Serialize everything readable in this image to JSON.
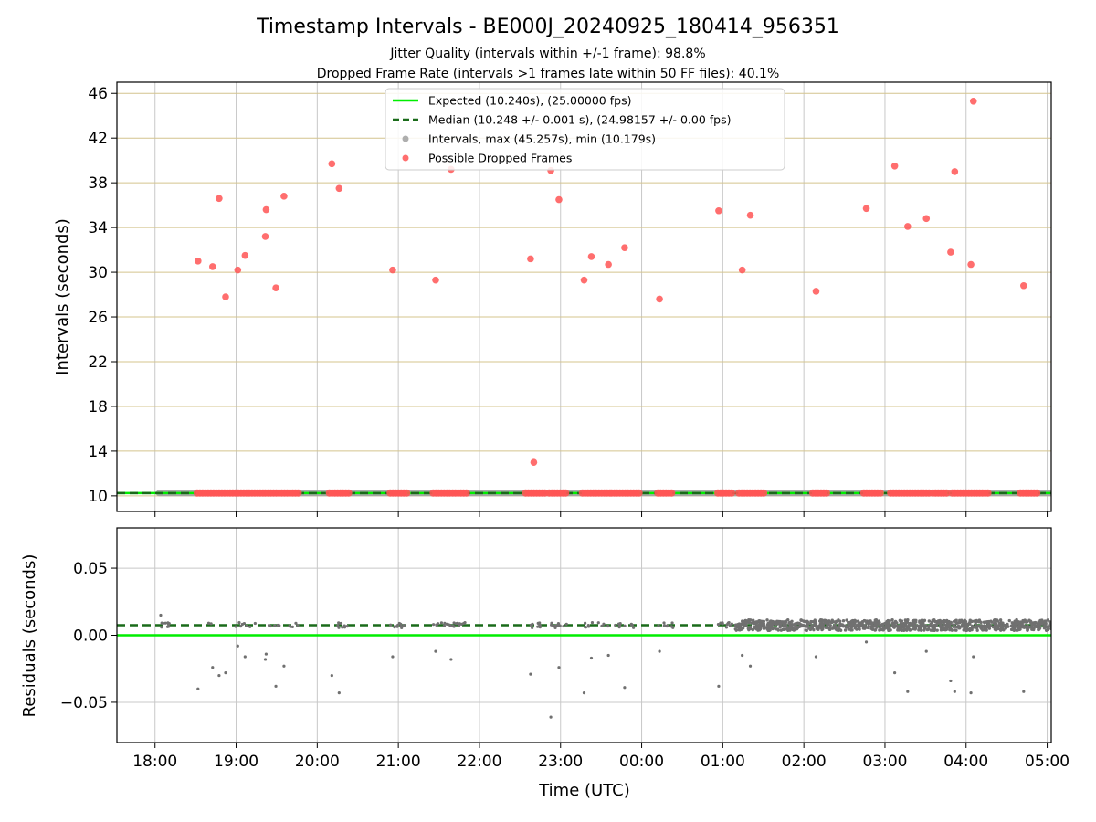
{
  "chart_data": [
    {
      "id": "intervals",
      "type": "scatter",
      "title": "Timestamp Intervals - BE000J_20240925_180414_956351",
      "subtitle_lines": [
        "Jitter Quality (intervals within +/-1 frame): 98.8%",
        "Dropped Frame Rate (intervals >1 frames late within 50 FF files): 40.1%"
      ],
      "xlabel": "",
      "ylabel": "Intervals (seconds)",
      "x_unit": "hours since 18:00 UTC",
      "xlim": [
        -0.47,
        11.05
      ],
      "ylim": [
        8.6,
        47.0
      ],
      "yticks": [
        10,
        14,
        18,
        22,
        26,
        30,
        34,
        38,
        42,
        46
      ],
      "grid": {
        "vertical": true,
        "horizontal": true,
        "horizontal_color": "#d4c48e",
        "vertical_color": "#c8c8c8"
      },
      "legend_position": "top-center",
      "lines": [
        {
          "name": "Expected (10.240s), (25.00000 fps)",
          "y": 10.24,
          "color": "#00ee00",
          "style": "solid"
        },
        {
          "name": "Median (10.248 +/- 0.001 s), (24.98157 +/- 0.00 fps)",
          "y": 10.248,
          "color": "#1a6b1a",
          "style": "dashed"
        }
      ],
      "series": [
        {
          "name": "Intervals, max (45.257s), min (10.179s)",
          "color": "#a0a0a0",
          "style": "band",
          "x_range": [
            0.05,
            11.05
          ],
          "y": 10.25
        },
        {
          "name": "Possible Dropped Frames",
          "color": "#ff5555",
          "points": [
            [
              0.53,
              31.0
            ],
            [
              0.71,
              30.5
            ],
            [
              0.79,
              36.6
            ],
            [
              0.87,
              27.8
            ],
            [
              1.02,
              30.2
            ],
            [
              1.11,
              31.5
            ],
            [
              1.36,
              33.2
            ],
            [
              1.37,
              35.6
            ],
            [
              1.49,
              28.6
            ],
            [
              1.59,
              36.8
            ],
            [
              2.18,
              39.7
            ],
            [
              2.27,
              37.5
            ],
            [
              2.93,
              30.2
            ],
            [
              3.46,
              29.3
            ],
            [
              3.65,
              39.2
            ],
            [
              4.63,
              31.2
            ],
            [
              4.67,
              13.0
            ],
            [
              4.88,
              39.1
            ],
            [
              4.98,
              36.5
            ],
            [
              5.29,
              29.3
            ],
            [
              5.38,
              31.4
            ],
            [
              5.59,
              30.7
            ],
            [
              5.79,
              32.2
            ],
            [
              6.22,
              27.6
            ],
            [
              6.95,
              35.5
            ],
            [
              7.24,
              30.2
            ],
            [
              7.34,
              35.1
            ],
            [
              8.15,
              28.3
            ],
            [
              8.77,
              35.7
            ],
            [
              9.12,
              39.5
            ],
            [
              9.28,
              34.1
            ],
            [
              9.51,
              34.8
            ],
            [
              9.81,
              31.8
            ],
            [
              9.86,
              39.0
            ],
            [
              10.06,
              30.7
            ],
            [
              10.09,
              45.3
            ],
            [
              10.71,
              28.8
            ]
          ],
          "baseline_clusters": [
            [
              0.52,
              1.34
            ],
            [
              1.36,
              1.77
            ],
            [
              2.15,
              2.42
            ],
            [
              2.9,
              3.11
            ],
            [
              3.43,
              3.64
            ],
            [
              3.67,
              3.86
            ],
            [
              4.57,
              4.83
            ],
            [
              4.86,
              5.08
            ],
            [
              5.27,
              5.61
            ],
            [
              5.63,
              5.98
            ],
            [
              6.2,
              6.39
            ],
            [
              6.94,
              7.13
            ],
            [
              7.2,
              7.52
            ],
            [
              8.11,
              8.3
            ],
            [
              8.74,
              8.96
            ],
            [
              9.07,
              9.57
            ],
            [
              9.59,
              9.79
            ],
            [
              9.83,
              10.07
            ],
            [
              10.1,
              10.29
            ],
            [
              10.67,
              10.9
            ]
          ],
          "baseline_y": 10.25
        }
      ]
    },
    {
      "id": "residuals",
      "type": "scatter",
      "xlabel": "Time (UTC)",
      "ylabel": "Residuals (seconds)",
      "x_unit": "hours since 18:00 UTC",
      "xlim": [
        -0.47,
        11.05
      ],
      "ylim": [
        -0.08,
        0.08
      ],
      "yticks": [
        -0.05,
        0.0,
        0.05
      ],
      "ytick_labels": [
        "−0.05",
        "0.00",
        "0.05"
      ],
      "xticks": [
        0,
        1,
        2,
        3,
        4,
        5,
        6,
        7,
        8,
        9,
        10,
        11
      ],
      "xtick_labels": [
        "18:00",
        "19:00",
        "20:00",
        "21:00",
        "22:00",
        "23:00",
        "00:00",
        "01:00",
        "02:00",
        "03:00",
        "04:00",
        "05:00"
      ],
      "grid": {
        "vertical": true,
        "horizontal": true
      },
      "lines": [
        {
          "name": "Expected",
          "y": 0.0,
          "color": "#00ee00",
          "style": "solid"
        },
        {
          "name": "Median",
          "y": 0.0075,
          "color": "#1a6b1a",
          "style": "dashed"
        }
      ],
      "series": [
        {
          "name": "Residuals",
          "color": "#707070",
          "dense_band": {
            "x_range": [
              7.15,
              11.05
            ],
            "y_center": 0.0075,
            "y_spread": 0.004
          },
          "sparse_band": {
            "x_range": [
              0.05,
              7.15
            ],
            "y_center": 0.0075,
            "y_spread": 0.002
          },
          "outliers": [
            [
              0.07,
              0.015
            ],
            [
              0.53,
              -0.04
            ],
            [
              0.71,
              -0.024
            ],
            [
              0.79,
              -0.03
            ],
            [
              0.87,
              -0.028
            ],
            [
              1.02,
              -0.008
            ],
            [
              1.11,
              -0.016
            ],
            [
              1.36,
              -0.018
            ],
            [
              1.37,
              -0.014
            ],
            [
              1.49,
              -0.038
            ],
            [
              1.59,
              -0.023
            ],
            [
              2.18,
              -0.03
            ],
            [
              2.27,
              -0.043
            ],
            [
              2.93,
              -0.016
            ],
            [
              3.46,
              -0.012
            ],
            [
              3.65,
              -0.018
            ],
            [
              4.63,
              -0.029
            ],
            [
              4.88,
              -0.061
            ],
            [
              4.98,
              -0.024
            ],
            [
              5.29,
              -0.043
            ],
            [
              5.38,
              -0.017
            ],
            [
              5.59,
              -0.015
            ],
            [
              5.79,
              -0.039
            ],
            [
              6.22,
              -0.012
            ],
            [
              6.95,
              -0.038
            ],
            [
              7.24,
              -0.015
            ],
            [
              7.34,
              -0.023
            ],
            [
              8.15,
              -0.016
            ],
            [
              8.77,
              -0.005
            ],
            [
              9.12,
              -0.028
            ],
            [
              9.28,
              -0.042
            ],
            [
              9.51,
              -0.012
            ],
            [
              9.81,
              -0.034
            ],
            [
              9.86,
              -0.042
            ],
            [
              10.06,
              -0.043
            ],
            [
              10.09,
              -0.016
            ],
            [
              10.71,
              -0.042
            ]
          ]
        }
      ]
    }
  ]
}
